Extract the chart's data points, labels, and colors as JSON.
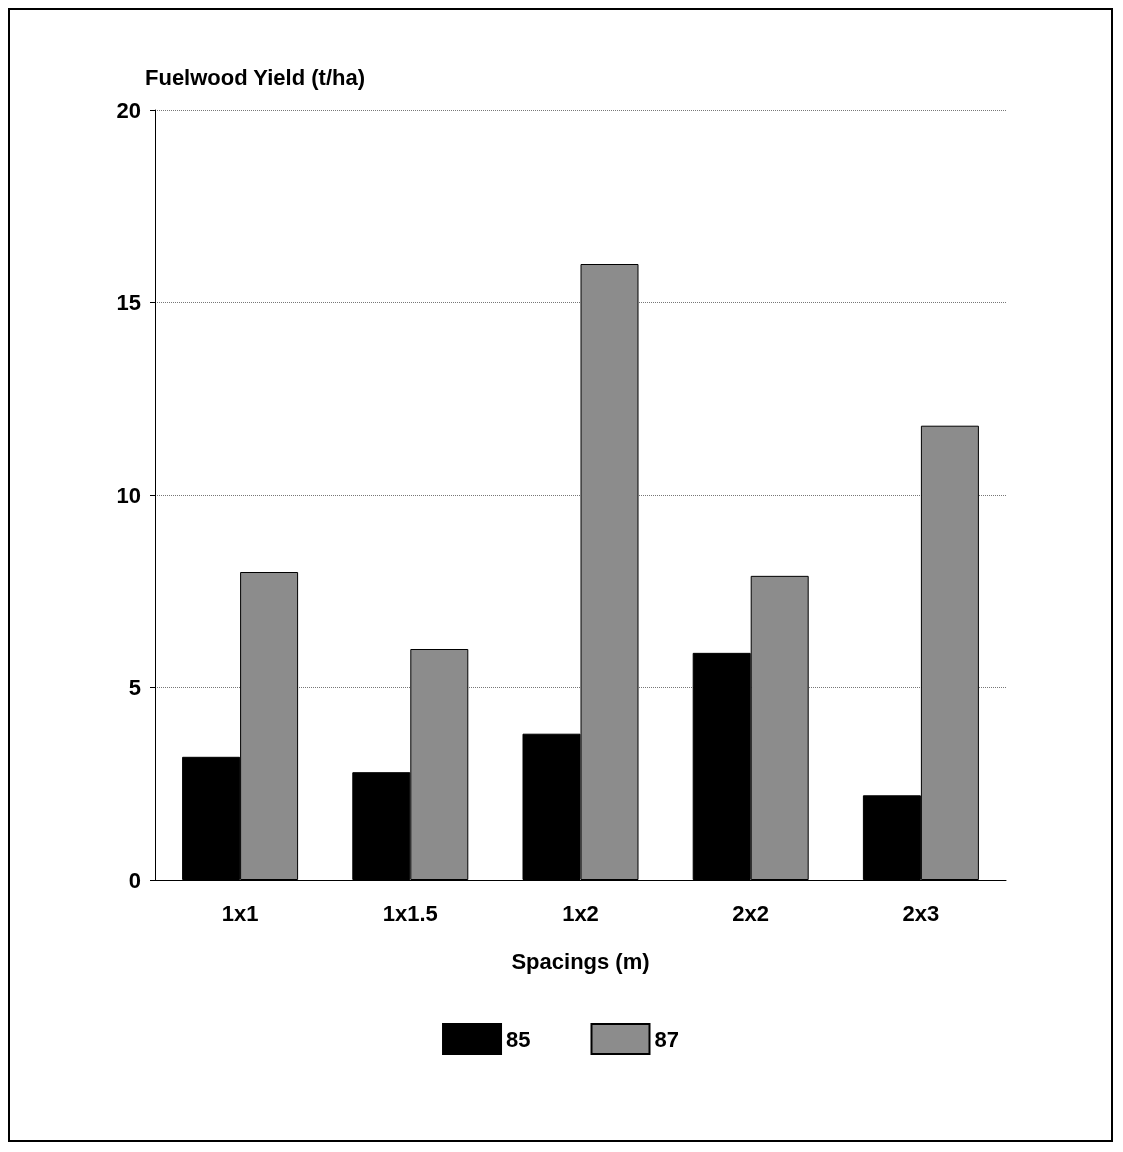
{
  "chart_data": {
    "type": "bar",
    "ylabel": "Fuelwood Yield (t/ha)",
    "xlabel": "Spacings (m)",
    "categories": [
      "1x1",
      "1x1.5",
      "1x2",
      "2x2",
      "2x3"
    ],
    "series": [
      {
        "name": "85",
        "color": "#000000",
        "values": [
          3.2,
          2.8,
          3.8,
          5.9,
          2.2
        ]
      },
      {
        "name": "87",
        "color": "#8c8c8c",
        "values": [
          8,
          6,
          16,
          7.9,
          11.8
        ]
      }
    ],
    "ylim": [
      0,
      20
    ],
    "yticks": [
      0,
      5,
      10,
      15,
      20
    ],
    "grid": "y",
    "legend": "bottom"
  }
}
